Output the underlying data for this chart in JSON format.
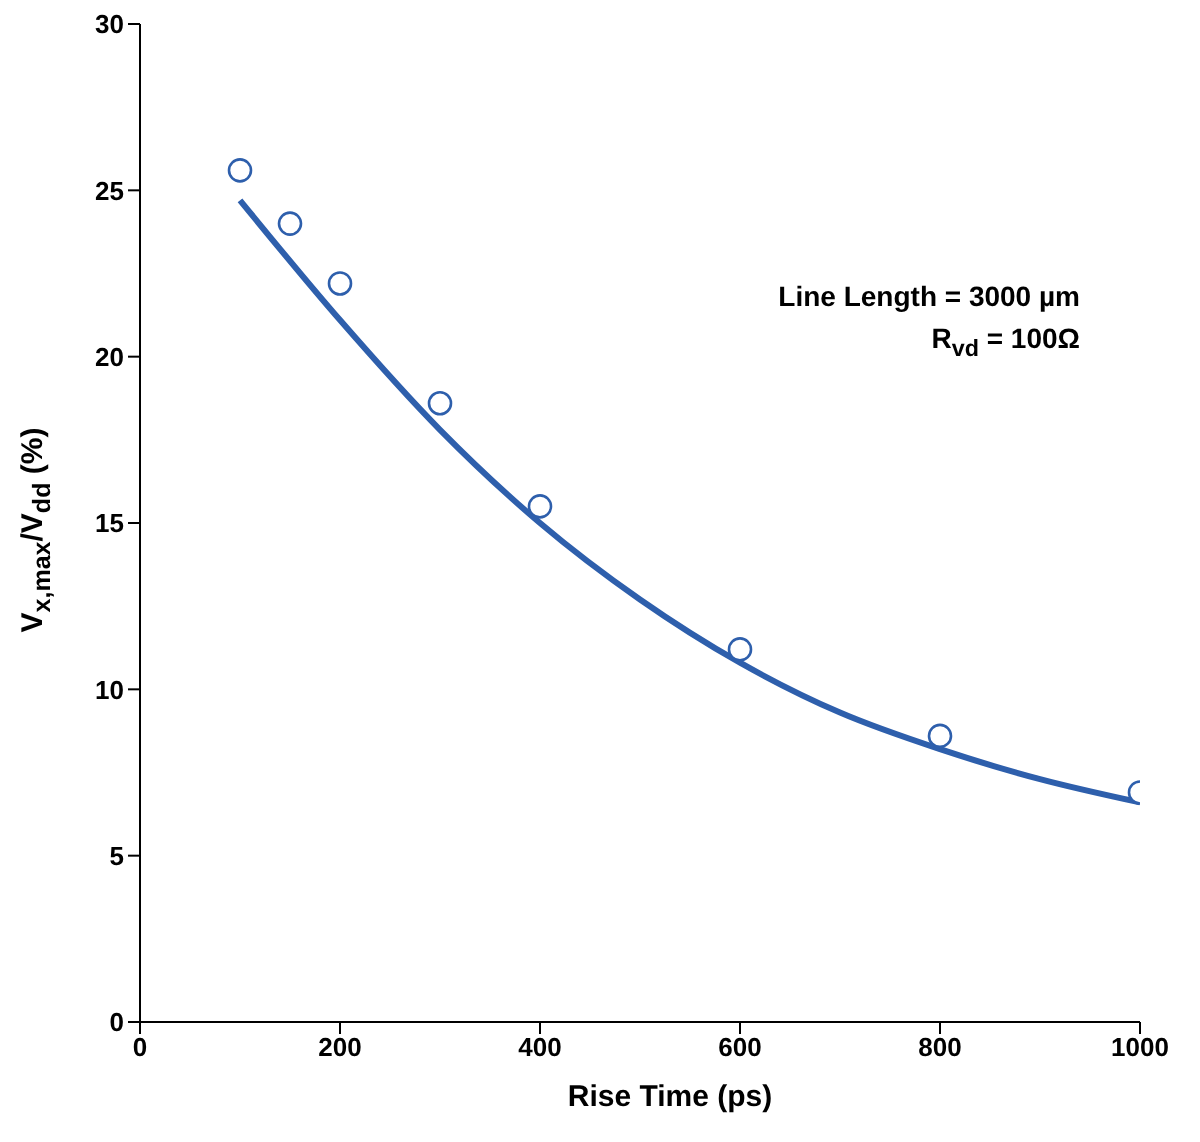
{
  "chart_data": {
    "type": "scatter",
    "xlabel": "Rise Time (ps)",
    "ylabel": "V$_{x,max}$/V$_{dd}$ (%)",
    "xlim": [
      0,
      1000
    ],
    "xticks": [
      0,
      200,
      400,
      600,
      800,
      1000
    ],
    "ylim": [
      0,
      30
    ],
    "yticks": [
      0,
      5,
      10,
      15,
      20,
      25,
      30
    ],
    "annotations": [
      "Line Length = 3000 µm",
      "R$_{vd}$ = 100Ω"
    ],
    "series": [
      {
        "color": "#2e5fac",
        "marker": "circle",
        "x": [
          100,
          150,
          200,
          300,
          400,
          600,
          800,
          1000
        ],
        "values": [
          25.6,
          24.0,
          22.2,
          18.6,
          15.5,
          11.2,
          8.6,
          6.9
        ]
      },
      {
        "type": "line",
        "color": "#2e5fac",
        "marker": "none",
        "x": [
          100,
          200,
          300,
          400,
          500,
          600,
          700,
          800,
          900,
          1000
        ],
        "values": [
          24.7,
          21.1,
          17.8,
          15.0,
          12.7,
          10.8,
          9.3,
          8.2,
          7.3,
          6.6
        ]
      }
    ]
  }
}
